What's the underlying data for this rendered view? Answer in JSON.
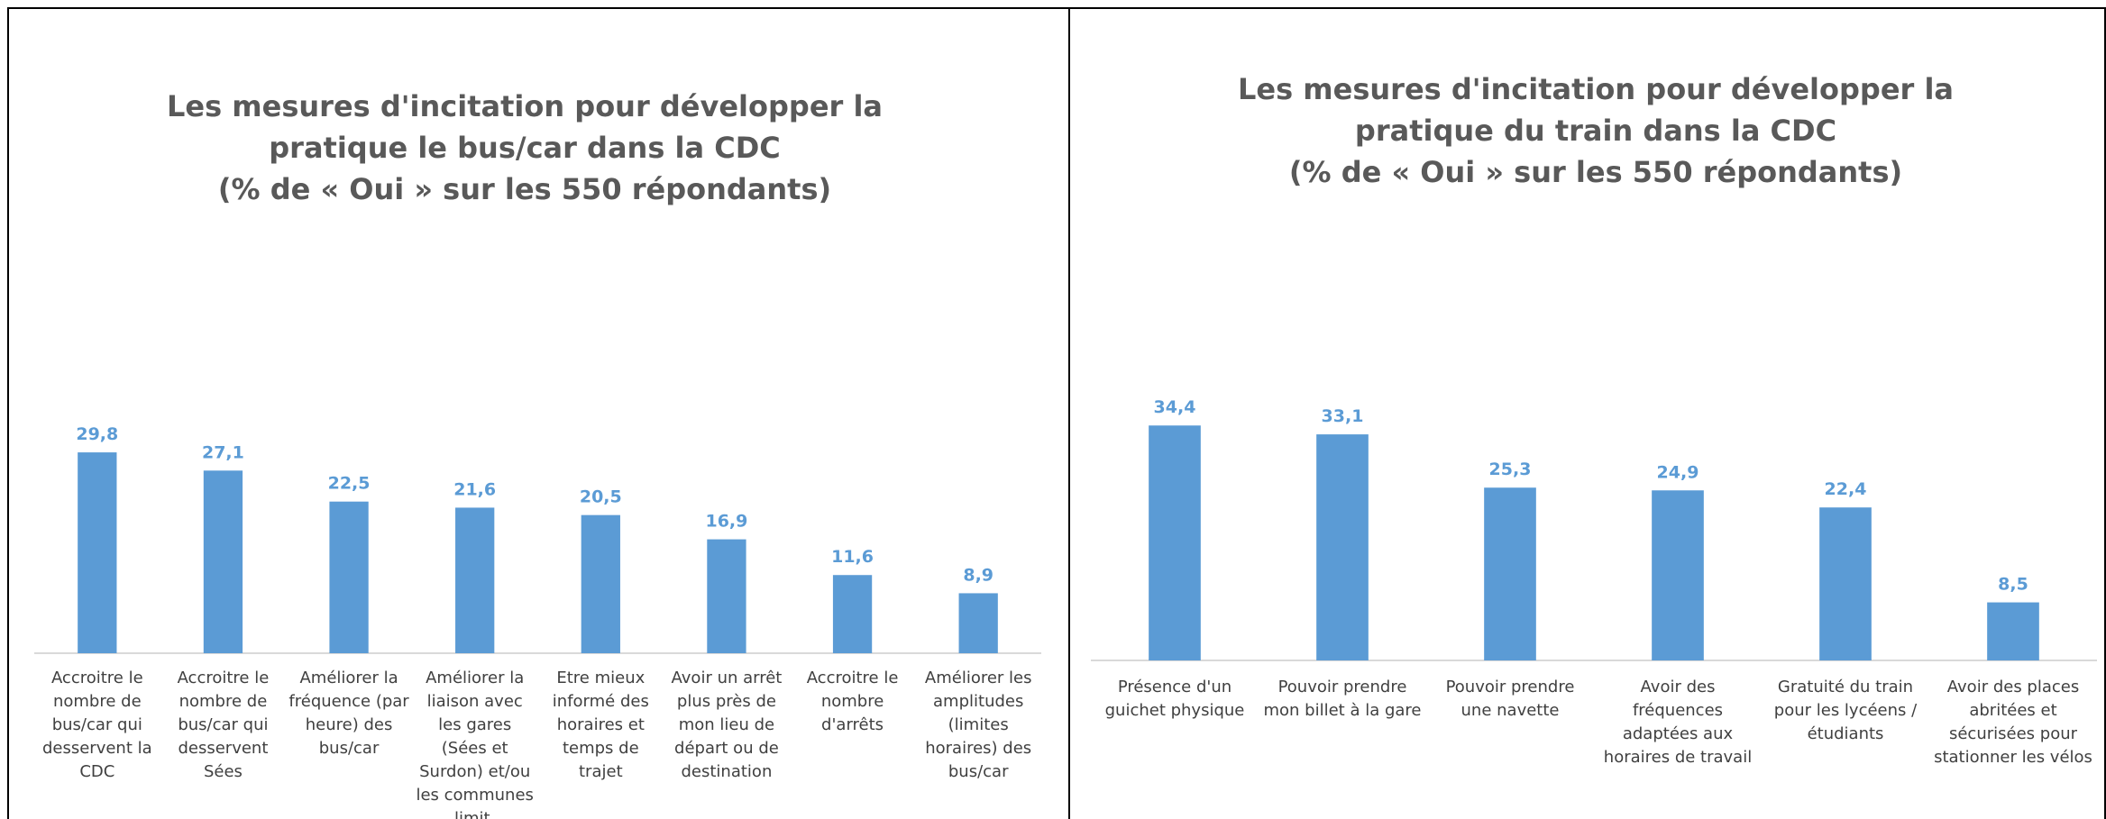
{
  "chart_data": [
    {
      "type": "bar",
      "title": "Les mesures d'incitation pour développer la pratique le bus/car dans la CDC",
      "subtitle": "(% de « Oui » sur les 550 répondants)",
      "categories": [
        "Accroitre le nombre de bus/car qui desservent la CDC",
        "Accroitre le nombre de bus/car qui desservent Sées",
        "Améliorer la fréquence (par heure) des bus/car",
        "Améliorer la liaison avec les gares (Sées et Surdon) et/ou les communes limit.",
        "Etre mieux informé des horaires et temps de trajet",
        "Avoir un arrêt plus près de mon lieu de départ ou de destination",
        "Accroitre le nombre d'arrêts",
        "Améliorer les amplitudes (limites horaires) des bus/car"
      ],
      "values": [
        29.8,
        27.1,
        22.5,
        21.6,
        20.5,
        16.9,
        11.6,
        8.9
      ],
      "value_labels": [
        "29,8",
        "27,1",
        "22,5",
        "21,6",
        "20,5",
        "16,9",
        "11,6",
        "8,9"
      ],
      "color": "#5b9bd5"
    },
    {
      "type": "bar",
      "title": "Les mesures d'incitation pour développer la pratique du train dans la CDC",
      "subtitle": "(% de « Oui » sur les 550 répondants)",
      "categories": [
        "Présence d'un guichet physique",
        "Pouvoir prendre mon billet à la gare",
        "Pouvoir prendre une navette",
        "Avoir des fréquences adaptées aux horaires de travail",
        "Gratuité du train pour les lycéens / étudiants",
        "Avoir des places abritées et sécurisées pour stationner les vélos"
      ],
      "values": [
        34.4,
        33.1,
        25.3,
        24.9,
        22.4,
        8.5
      ],
      "value_labels": [
        "34,4",
        "33,1",
        "25,3",
        "24,9",
        "22,4",
        "8,5"
      ],
      "color": "#5b9bd5"
    }
  ]
}
